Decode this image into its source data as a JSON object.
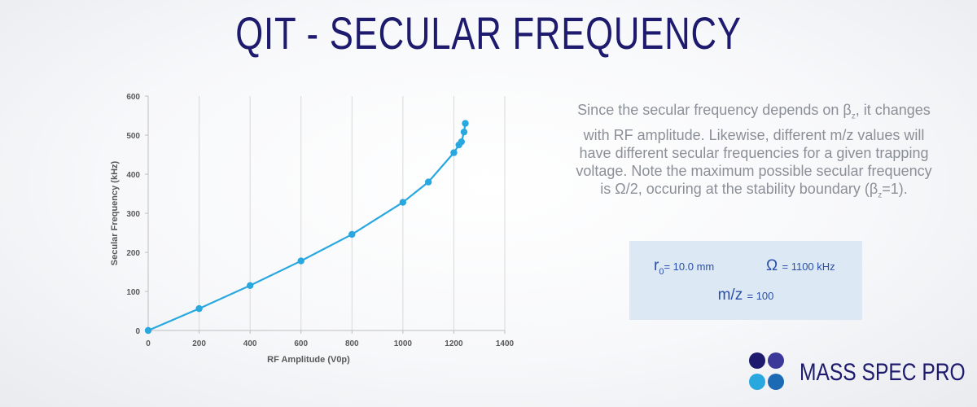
{
  "title": "QIT - SECULAR FREQUENCY",
  "description": {
    "line1a": "Since the secular frequency depends on β",
    "line1sub": "z",
    "line1b": ", it changes",
    "line2": "with RF amplitude.  Likewise, different m/z values will",
    "line3": "have different secular frequencies for a given trapping",
    "line4": "voltage.  Note the maximum possible secular frequency",
    "line5a": "is Ω/2, occuring at the stability boundary (β",
    "line5sub": "z",
    "line5b": "=1)."
  },
  "params": {
    "r0_label": "r",
    "r0_sub": "0",
    "r0_value": "= 10.0 mm",
    "omega_symbol": "Ω",
    "omega_value": "= 1100 kHz",
    "mz_label": "m/z",
    "mz_value": "= 100"
  },
  "logo": {
    "text": "MASS SPEC PRO"
  },
  "colors": {
    "title": "#1e1b6e",
    "series": "#29a8e0",
    "box": "#dce9f5",
    "box_text": "#2b4fa8",
    "desc": "#8b8f97"
  },
  "chart_data": {
    "type": "line",
    "title": "",
    "xlabel": "RF Amplitude (V0p)",
    "ylabel": "Secular Frequency (kHz)",
    "xlim": [
      0,
      1400
    ],
    "ylim": [
      0,
      600
    ],
    "xticks": [
      0,
      200,
      400,
      600,
      800,
      1000,
      1200,
      1400
    ],
    "yticks": [
      0,
      100,
      200,
      300,
      400,
      500,
      600
    ],
    "grid": "vertical",
    "legend": "none",
    "series": [
      {
        "x": [
          0,
          200,
          400,
          600,
          800,
          1000,
          1100,
          1200,
          1220,
          1230,
          1240,
          1245
        ],
        "y": [
          0,
          56,
          115,
          178,
          246,
          328,
          380,
          455,
          475,
          483,
          508,
          530
        ]
      }
    ]
  }
}
